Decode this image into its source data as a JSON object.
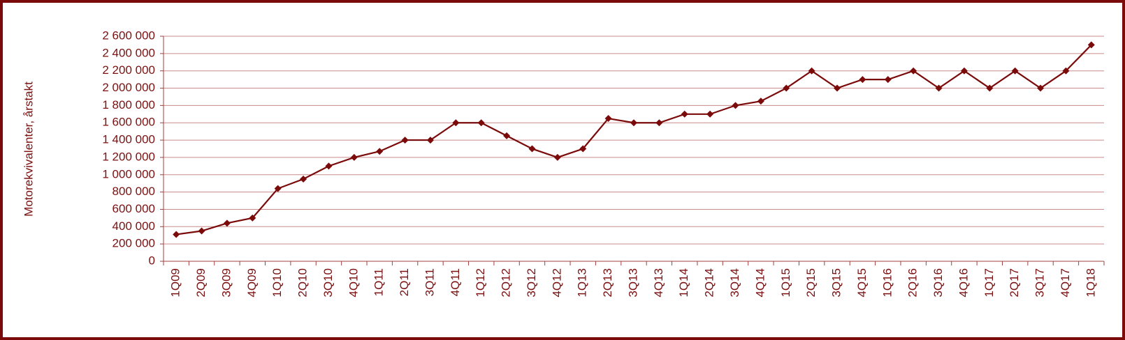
{
  "chart_data": {
    "type": "line",
    "y_label": "Motorekvivalenter, årstakt",
    "categories": [
      "1Q09",
      "2Q09",
      "3Q09",
      "4Q09",
      "1Q10",
      "2Q10",
      "3Q10",
      "4Q10",
      "1Q11",
      "2Q11",
      "3Q11",
      "4Q11",
      "1Q12",
      "2Q12",
      "3Q12",
      "4Q12",
      "1Q13",
      "2Q13",
      "3Q13",
      "4Q13",
      "1Q14",
      "2Q14",
      "3Q14",
      "4Q14",
      "1Q15",
      "2Q15",
      "3Q15",
      "4Q15",
      "1Q16",
      "2Q16",
      "3Q16",
      "4Q16",
      "1Q17",
      "2Q17",
      "3Q17",
      "4Q17",
      "1Q18"
    ],
    "series": [
      {
        "color": "#7b0a0a",
        "values": [
          310000,
          350000,
          440000,
          500000,
          840000,
          950000,
          1100000,
          1200000,
          1270000,
          1400000,
          1400000,
          1600000,
          1600000,
          1450000,
          1300000,
          1200000,
          1300000,
          1650000,
          1600000,
          1600000,
          1700000,
          1700000,
          1800000,
          1850000,
          2000000,
          2200000,
          2000000,
          2100000,
          2100000,
          2200000,
          2000000,
          2200000,
          2000000,
          2200000,
          2000000,
          2200000,
          2500000
        ]
      }
    ],
    "ylim": [
      0,
      2600000
    ],
    "yticks": [
      0,
      {
        "value": 200000,
        "label": "200 000"
      },
      {
        "value": 400000,
        "label": "400 000"
      },
      {
        "value": 600000,
        "label": "600 000"
      },
      {
        "value": 800000,
        "label": "800 000"
      },
      {
        "value": 1000000,
        "label": "1 000 000"
      },
      {
        "value": 1200000,
        "label": "1 200 000"
      },
      {
        "value": 1400000,
        "label": "1 400 000"
      },
      {
        "value": 1600000,
        "label": "1 600 000"
      },
      {
        "value": 1800000,
        "label": "1 800 000"
      },
      {
        "value": 2000000,
        "label": "2 000 000"
      },
      {
        "value": 2200000,
        "label": "2 200 000"
      },
      {
        "value": 2400000,
        "label": "2 400 000"
      },
      {
        "value": 2600000,
        "label": "2 600 000"
      }
    ],
    "grid": true
  }
}
